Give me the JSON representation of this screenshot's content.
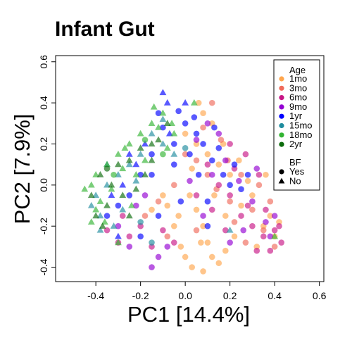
{
  "chart_data": {
    "type": "scatter",
    "title": "Infant Gut",
    "xlabel": "PC1 [14.4%]",
    "ylabel": "PC2 [7.9%]",
    "xlim": [
      -0.58,
      0.62
    ],
    "ylim": [
      -0.47,
      0.63
    ],
    "x_ticks": [
      -0.4,
      -0.2,
      0.0,
      0.2,
      0.4,
      0.6
    ],
    "x_tick_labels": [
      "-0.4",
      "-0.2",
      "0.0",
      "0.2",
      "0.4",
      "0.6"
    ],
    "y_ticks": [
      -0.4,
      -0.2,
      0.0,
      0.2,
      0.4,
      0.6
    ],
    "y_tick_labels": [
      "-0.4",
      "-0.2",
      "0.0",
      "0.2",
      "0.4",
      "0.6"
    ],
    "grid": false,
    "legend_position": "top-right",
    "legend": {
      "color_title": "Age",
      "color_items": [
        {
          "label": "1mo",
          "color": "#FFA64D"
        },
        {
          "label": "3mo",
          "color": "#F06A5A"
        },
        {
          "label": "6mo",
          "color": "#C71585"
        },
        {
          "label": "9mo",
          "color": "#9400D3"
        },
        {
          "label": "1yr",
          "color": "#0000FF"
        },
        {
          "label": "15mo",
          "color": "#1E8C9E"
        },
        {
          "label": "18mo",
          "color": "#32B432"
        },
        {
          "label": "2yr",
          "color": "#0B6B0B"
        }
      ],
      "shape_title": "BF",
      "shape_items": [
        {
          "label": "Yes",
          "shape": "circle"
        },
        {
          "label": "No",
          "shape": "triangle"
        }
      ]
    },
    "series": [
      {
        "name": "1mo",
        "color": "#FFA64D",
        "points": [
          [
            0.02,
            -0.05,
            "c"
          ],
          [
            0.05,
            -0.12,
            "c"
          ],
          [
            0.08,
            -0.2,
            "c"
          ],
          [
            0.1,
            -0.28,
            "c"
          ],
          [
            0.12,
            -0.35,
            "c"
          ],
          [
            0.08,
            -0.42,
            "c"
          ],
          [
            0.15,
            -0.38,
            "c"
          ],
          [
            -0.02,
            -0.3,
            "c"
          ],
          [
            -0.05,
            -0.2,
            "c"
          ],
          [
            -0.08,
            -0.1,
            "c"
          ],
          [
            0.18,
            -0.15,
            "c"
          ],
          [
            0.22,
            -0.25,
            "c"
          ],
          [
            0.25,
            -0.1,
            "c"
          ],
          [
            0.3,
            -0.05,
            "c"
          ],
          [
            0.35,
            -0.2,
            "c"
          ],
          [
            0.38,
            -0.15,
            "c"
          ],
          [
            0.4,
            -0.25,
            "c"
          ],
          [
            0.2,
            0.05,
            "c"
          ],
          [
            0.15,
            0.1,
            "c"
          ],
          [
            0.1,
            0.15,
            "c"
          ],
          [
            0.05,
            0.2,
            "c"
          ],
          [
            0.0,
            0.25,
            "c"
          ],
          [
            0.08,
            0.35,
            "c"
          ],
          [
            0.12,
            0.3,
            "c"
          ],
          [
            0.06,
            0.4,
            "c"
          ],
          [
            -0.1,
            -0.05,
            "c"
          ],
          [
            -0.15,
            -0.12,
            "c"
          ],
          [
            0.03,
            0.08,
            "c"
          ],
          [
            0.28,
            0.02,
            "c"
          ],
          [
            0.32,
            -0.3,
            "c"
          ],
          [
            0.18,
            -0.32,
            "c"
          ],
          [
            0.0,
            -0.35,
            "c"
          ],
          [
            -0.03,
            -0.15,
            "c"
          ],
          [
            0.13,
            -0.05,
            "c"
          ],
          [
            0.24,
            0.12,
            "c"
          ],
          [
            0.36,
            0.05,
            "c"
          ],
          [
            0.42,
            -0.18,
            "c"
          ],
          [
            0.07,
            -0.28,
            "c"
          ],
          [
            0.17,
            0.2,
            "c"
          ],
          [
            0.03,
            -0.4,
            "c"
          ]
        ]
      },
      {
        "name": "3mo",
        "color": "#F06A5A",
        "points": [
          [
            0.1,
            0.05,
            "c"
          ],
          [
            0.14,
            -0.02,
            "c"
          ],
          [
            0.2,
            -0.08,
            "c"
          ],
          [
            0.25,
            0.05,
            "c"
          ],
          [
            0.3,
            -0.12,
            "c"
          ],
          [
            0.35,
            -0.22,
            "c"
          ],
          [
            0.4,
            -0.3,
            "c"
          ],
          [
            0.05,
            0.12,
            "c"
          ],
          [
            -0.05,
            0.0,
            "c"
          ],
          [
            -0.12,
            -0.08,
            "c"
          ],
          [
            0.16,
            0.22,
            "c"
          ],
          [
            0.08,
            0.28,
            "c"
          ],
          [
            0.22,
            -0.18,
            "c"
          ],
          [
            0.27,
            -0.28,
            "c"
          ],
          [
            0.33,
            0.0,
            "c"
          ],
          [
            -0.18,
            -0.15,
            "c"
          ],
          [
            0.0,
            0.15,
            "c"
          ],
          [
            0.12,
            0.4,
            "c"
          ],
          [
            0.19,
            0.12,
            "c"
          ],
          [
            0.38,
            -0.08,
            "c"
          ],
          [
            -0.08,
            -0.25,
            "c"
          ],
          [
            0.05,
            -0.22,
            "c"
          ]
        ]
      },
      {
        "name": "6mo",
        "color": "#C71585",
        "points": [
          [
            0.15,
            0.0,
            "c"
          ],
          [
            0.2,
            -0.05,
            "c"
          ],
          [
            0.25,
            -0.15,
            "c"
          ],
          [
            0.3,
            -0.2,
            "c"
          ],
          [
            0.35,
            -0.25,
            "c"
          ],
          [
            0.4,
            -0.22,
            "c"
          ],
          [
            0.43,
            -0.28,
            "c"
          ],
          [
            0.38,
            -0.32,
            "c"
          ],
          [
            0.28,
            -0.1,
            "c"
          ],
          [
            0.33,
            0.05,
            "c"
          ],
          [
            -0.2,
            -0.2,
            "c"
          ],
          [
            -0.25,
            -0.25,
            "c"
          ],
          [
            -0.3,
            -0.28,
            "c"
          ],
          [
            -0.15,
            -0.3,
            "c"
          ],
          [
            -0.1,
            -0.22,
            "c"
          ],
          [
            0.05,
            -0.05,
            "c"
          ],
          [
            0.1,
            0.1,
            "c"
          ],
          [
            0.22,
            0.08,
            "c"
          ],
          [
            0.27,
            0.15,
            "c"
          ],
          [
            -0.28,
            -0.15,
            "c"
          ],
          [
            -0.35,
            -0.22,
            "c"
          ],
          [
            0.12,
            -0.12,
            "c"
          ],
          [
            0.18,
            -0.22,
            "c"
          ],
          [
            0.32,
            -0.32,
            "c"
          ],
          [
            -0.05,
            -0.28,
            "c"
          ],
          [
            0.36,
            -0.12,
            "c"
          ],
          [
            0.2,
            0.2,
            "c"
          ],
          [
            0.42,
            -0.2,
            "c"
          ]
        ]
      },
      {
        "name": "9mo",
        "color": "#9400D3",
        "points": [
          [
            0.12,
            0.05,
            "c"
          ],
          [
            0.18,
            0.12,
            "c"
          ],
          [
            0.24,
            0.02,
            "c"
          ],
          [
            0.3,
            -0.08,
            "c"
          ],
          [
            0.36,
            -0.18,
            "c"
          ],
          [
            -0.22,
            -0.1,
            "c"
          ],
          [
            -0.18,
            -0.05,
            "c"
          ],
          [
            -0.3,
            -0.2,
            "c"
          ],
          [
            -0.12,
            -0.35,
            "c"
          ],
          [
            -0.15,
            -0.4,
            "c"
          ],
          [
            0.05,
            0.22,
            "c"
          ],
          [
            0.1,
            0.3,
            "c"
          ],
          [
            0.2,
            -0.28,
            "c"
          ],
          [
            0.26,
            -0.22,
            "c"
          ],
          [
            -0.08,
            -0.3,
            "c"
          ],
          [
            0.02,
            0.02,
            "c"
          ],
          [
            0.15,
            0.25,
            "c"
          ],
          [
            0.4,
            -0.15,
            "c"
          ],
          [
            0.32,
            0.08,
            "c"
          ],
          [
            -0.25,
            -0.3,
            "c"
          ],
          [
            0.08,
            -0.15,
            "c"
          ],
          [
            0.38,
            -0.25,
            "c"
          ]
        ]
      },
      {
        "name": "1yr",
        "color": "#0000FF",
        "points": [
          [
            -0.05,
            0.2,
            "c"
          ],
          [
            0.0,
            0.3,
            "c"
          ],
          [
            0.05,
            0.25,
            "c"
          ],
          [
            -0.1,
            0.28,
            "c"
          ],
          [
            -0.15,
            0.15,
            "c"
          ],
          [
            -0.2,
            0.05,
            "c"
          ],
          [
            -0.25,
            -0.05,
            "c"
          ],
          [
            -0.3,
            -0.1,
            "c"
          ],
          [
            -0.35,
            -0.15,
            "c"
          ],
          [
            -0.12,
            0.35,
            "c"
          ],
          [
            -0.08,
            0.4,
            "t"
          ],
          [
            -0.05,
            0.1,
            "c"
          ],
          [
            0.02,
            0.15,
            "c"
          ],
          [
            0.08,
            0.2,
            "c"
          ],
          [
            0.12,
            0.12,
            "c"
          ],
          [
            0.17,
            0.05,
            "c"
          ],
          [
            0.22,
            0.1,
            "c"
          ],
          [
            0.28,
            0.05,
            "c"
          ],
          [
            -0.18,
            0.2,
            "t"
          ],
          [
            -0.22,
            0.1,
            "t"
          ],
          [
            -0.28,
            0.0,
            "t"
          ],
          [
            -0.33,
            -0.05,
            "t"
          ],
          [
            0.0,
            0.4,
            "t"
          ],
          [
            -0.1,
            0.45,
            "t"
          ],
          [
            0.04,
            0.33,
            "c"
          ],
          [
            -0.02,
            -0.08,
            "c"
          ],
          [
            0.1,
            -0.08,
            "c"
          ],
          [
            0.15,
            0.18,
            "c"
          ],
          [
            -0.15,
            0.05,
            "c"
          ],
          [
            -0.07,
            0.25,
            "t"
          ],
          [
            0.2,
            0.0,
            "c"
          ],
          [
            -0.25,
            0.15,
            "t"
          ],
          [
            0.06,
            0.05,
            "c"
          ],
          [
            -0.12,
            -0.15,
            "c"
          ],
          [
            0.25,
            -0.02,
            "c"
          ],
          [
            -0.03,
            0.36,
            "c"
          ],
          [
            0.13,
            0.28,
            "c"
          ],
          [
            -0.2,
            -0.25,
            "c"
          ],
          [
            -0.3,
            -0.25,
            "t"
          ],
          [
            0.1,
            -0.2,
            "c"
          ]
        ]
      },
      {
        "name": "15mo",
        "color": "#1E8C9E",
        "points": [
          [
            -0.3,
            0.05,
            "t"
          ],
          [
            -0.35,
            0.0,
            "t"
          ],
          [
            -0.4,
            -0.05,
            "t"
          ],
          [
            -0.38,
            -0.15,
            "t"
          ],
          [
            -0.32,
            -0.2,
            "t"
          ],
          [
            -0.25,
            0.1,
            "t"
          ],
          [
            -0.2,
            0.15,
            "t"
          ],
          [
            -0.15,
            0.25,
            "t"
          ],
          [
            -0.1,
            0.2,
            "t"
          ],
          [
            -0.28,
            -0.12,
            "t"
          ],
          [
            -0.42,
            -0.1,
            "t"
          ],
          [
            -0.2,
            -0.18,
            "c"
          ],
          [
            -0.15,
            -0.28,
            "c"
          ],
          [
            -0.05,
            0.15,
            "t"
          ],
          [
            0.0,
            0.18,
            "c"
          ],
          [
            -0.35,
            0.1,
            "t"
          ],
          [
            -0.22,
            0.02,
            "t"
          ],
          [
            0.2,
            -0.22,
            "t"
          ],
          [
            -0.1,
            0.32,
            "t"
          ],
          [
            -0.38,
            -0.22,
            "t"
          ]
        ]
      },
      {
        "name": "18mo",
        "color": "#32B432",
        "points": [
          [
            -0.35,
            0.1,
            "t"
          ],
          [
            -0.4,
            0.05,
            "t"
          ],
          [
            -0.42,
            0.0,
            "t"
          ],
          [
            -0.38,
            -0.08,
            "t"
          ],
          [
            -0.3,
            0.15,
            "t"
          ],
          [
            -0.25,
            0.2,
            "t"
          ],
          [
            -0.2,
            0.25,
            "t"
          ],
          [
            -0.15,
            0.3,
            "t"
          ],
          [
            -0.1,
            0.35,
            "t"
          ],
          [
            -0.12,
            0.28,
            "t"
          ],
          [
            -0.18,
            0.12,
            "t"
          ],
          [
            -0.28,
            0.08,
            "t"
          ],
          [
            -0.33,
            -0.02,
            "t"
          ],
          [
            -0.4,
            -0.12,
            "t"
          ],
          [
            -0.36,
            -0.18,
            "t"
          ],
          [
            -0.05,
            0.25,
            "t"
          ],
          [
            -0.08,
            0.18,
            "t"
          ],
          [
            -0.22,
            0.05,
            "t"
          ],
          [
            -0.27,
            0.18,
            "t"
          ],
          [
            -0.32,
            0.05,
            "c"
          ],
          [
            -0.18,
            0.22,
            "c"
          ],
          [
            -0.1,
            0.15,
            "c"
          ],
          [
            -0.45,
            -0.02,
            "t"
          ],
          [
            -0.24,
            -0.1,
            "t"
          ],
          [
            0.4,
            -0.25,
            "t"
          ],
          [
            0.04,
            0.4,
            "t"
          ],
          [
            -0.14,
            0.38,
            "t"
          ],
          [
            -0.3,
            -0.28,
            "t"
          ],
          [
            -0.42,
            -0.18,
            "t"
          ],
          [
            -0.06,
            0.3,
            "t"
          ]
        ]
      },
      {
        "name": "2yr",
        "color": "#0B6B0B",
        "points": [
          [
            -0.38,
            0.05,
            "t"
          ],
          [
            -0.42,
            -0.05,
            "t"
          ],
          [
            -0.35,
            -0.1,
            "t"
          ],
          [
            -0.3,
            0.1,
            "t"
          ],
          [
            -0.25,
            0.12,
            "t"
          ],
          [
            -0.2,
            0.18,
            "t"
          ],
          [
            -0.15,
            0.2,
            "t"
          ],
          [
            -0.28,
            -0.05,
            "t"
          ],
          [
            -0.33,
            0.0,
            "t"
          ],
          [
            -0.4,
            -0.15,
            "t"
          ],
          [
            -0.18,
            0.05,
            "t"
          ],
          [
            -0.12,
            0.22,
            "t"
          ],
          [
            -0.08,
            0.3,
            "t"
          ],
          [
            -0.22,
            -0.02,
            "t"
          ],
          [
            -0.37,
            -0.2,
            "t"
          ],
          [
            -0.35,
            0.08,
            "c"
          ],
          [
            -0.25,
            -0.15,
            "t"
          ],
          [
            -0.15,
            0.12,
            "t"
          ]
        ]
      }
    ]
  }
}
